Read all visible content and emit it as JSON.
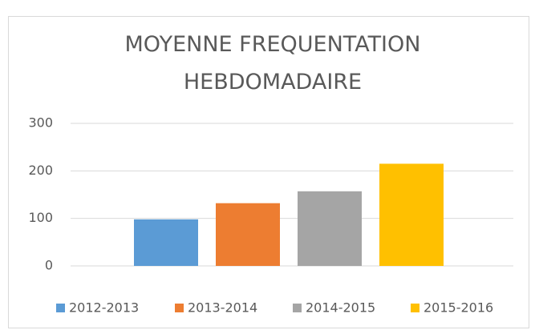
{
  "chart_data": {
    "type": "bar",
    "title": "MOYENNE FREQUENTATION HEBDOMADAIRE",
    "categories": [
      null
    ],
    "series": [
      {
        "name": "2012-2013",
        "color": "#5b9bd5",
        "values": [
          98
        ]
      },
      {
        "name": "2013-2014",
        "color": "#ed7d31",
        "values": [
          132
        ]
      },
      {
        "name": "2014-2015",
        "color": "#a5a5a5",
        "values": [
          157
        ]
      },
      {
        "name": "2015-2016",
        "color": "#ffc000",
        "values": [
          215
        ]
      }
    ],
    "ylim": [
      0,
      300
    ],
    "yticks": [
      0,
      100,
      200,
      300
    ],
    "grid": true,
    "legend": "bottom"
  }
}
